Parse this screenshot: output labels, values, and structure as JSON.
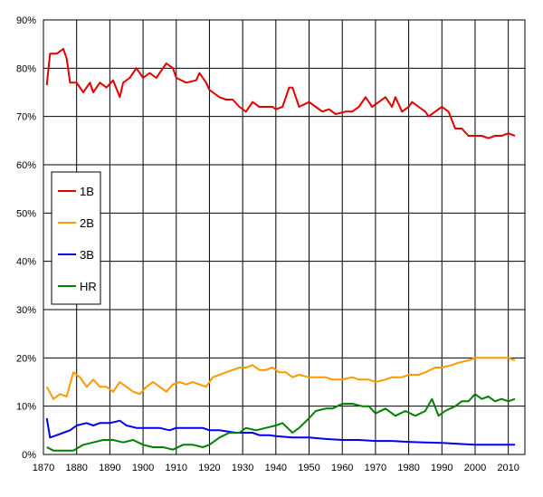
{
  "chart_data": {
    "type": "line",
    "title": "",
    "xlabel": "",
    "ylabel": "",
    "xlim": [
      1870,
      2015
    ],
    "ylim": [
      0,
      90
    ],
    "x_ticks": [
      "1870",
      "1880",
      "1890",
      "1900",
      "1910",
      "1920",
      "1930",
      "1940",
      "1950",
      "1960",
      "1970",
      "1980",
      "1990",
      "2000",
      "2010"
    ],
    "y_ticks": [
      "0%",
      "10%",
      "20%",
      "30%",
      "40%",
      "50%",
      "60%",
      "70%",
      "80%",
      "90%"
    ],
    "grid": true,
    "legend_position": "left-middle",
    "colors": {
      "1B": "#e00000",
      "2B": "#ff9900",
      "3B": "#0000ee",
      "HR": "#008000"
    },
    "series": [
      {
        "name": "1B",
        "x": [
          1871,
          1872,
          1874,
          1876,
          1877,
          1878,
          1880,
          1882,
          1884,
          1885,
          1887,
          1889,
          1891,
          1893,
          1894,
          1896,
          1898,
          1900,
          1902,
          1904,
          1906,
          1907,
          1909,
          1910,
          1913,
          1916,
          1917,
          1919,
          1920,
          1923,
          1925,
          1927,
          1929,
          1931,
          1933,
          1935,
          1937,
          1939,
          1940,
          1942,
          1944,
          1945,
          1947,
          1950,
          1952,
          1954,
          1956,
          1958,
          1961,
          1963,
          1965,
          1967,
          1969,
          1971,
          1973,
          1975,
          1976,
          1978,
          1980,
          1981,
          1983,
          1985,
          1986,
          1988,
          1990,
          1992,
          1994,
          1996,
          1998,
          2000,
          2002,
          2004,
          2006,
          2008,
          2010,
          2012
        ],
        "values": [
          76.5,
          83,
          83,
          84,
          82,
          77,
          77,
          75,
          77,
          75,
          77,
          76,
          77.5,
          74,
          77,
          78,
          80,
          78,
          79,
          78,
          80,
          81,
          80,
          78,
          77,
          77.5,
          79,
          77,
          75.5,
          74,
          73.5,
          73.5,
          72,
          71,
          73,
          72,
          72,
          72,
          71.5,
          72,
          76,
          76,
          72,
          73,
          72,
          71,
          71.5,
          70.5,
          71,
          71,
          72,
          74,
          72,
          73,
          74,
          72,
          74,
          71,
          72,
          73,
          72,
          71,
          70,
          71,
          72,
          71,
          67.5,
          67.5,
          66,
          66,
          66,
          65.5,
          66,
          66,
          66.5,
          66
        ]
      },
      {
        "name": "2B",
        "x": [
          1871,
          1873,
          1875,
          1877,
          1879,
          1881,
          1883,
          1885,
          1887,
          1889,
          1891,
          1893,
          1895,
          1897,
          1899,
          1901,
          1903,
          1905,
          1907,
          1909,
          1911,
          1913,
          1915,
          1917,
          1919,
          1921,
          1923,
          1925,
          1927,
          1929,
          1931,
          1933,
          1935,
          1937,
          1939,
          1941,
          1943,
          1945,
          1947,
          1950,
          1953,
          1955,
          1957,
          1960,
          1963,
          1965,
          1968,
          1970,
          1973,
          1975,
          1978,
          1980,
          1983,
          1985,
          1988,
          1990,
          1993,
          1995,
          1998,
          2000,
          2003,
          2005,
          2007,
          2010,
          2012
        ],
        "values": [
          14,
          11.5,
          12.5,
          12,
          17,
          16,
          14,
          15.5,
          14,
          14,
          13,
          15,
          14,
          13,
          12.5,
          14,
          15,
          14,
          13,
          14.5,
          15,
          14.5,
          15,
          14.5,
          14,
          16,
          16.5,
          17,
          17.5,
          18,
          18,
          18.5,
          17.5,
          17.5,
          18,
          17,
          17,
          16,
          16.5,
          16,
          16,
          16,
          15.5,
          15.5,
          16,
          15.5,
          15.5,
          15,
          15.5,
          16,
          16,
          16.5,
          16.5,
          17,
          18,
          18,
          18.5,
          19,
          19.5,
          20,
          20,
          20,
          20,
          20,
          19.5
        ]
      },
      {
        "name": "3B",
        "x": [
          1871,
          1872,
          1874,
          1876,
          1878,
          1880,
          1883,
          1885,
          1887,
          1890,
          1893,
          1895,
          1898,
          1900,
          1903,
          1905,
          1908,
          1910,
          1913,
          1915,
          1918,
          1920,
          1923,
          1925,
          1928,
          1930,
          1933,
          1935,
          1938,
          1940,
          1945,
          1950,
          1955,
          1960,
          1965,
          1970,
          1975,
          1980,
          1985,
          1990,
          1995,
          2000,
          2005,
          2010,
          2012
        ],
        "values": [
          7.5,
          3.5,
          4,
          4.5,
          5,
          6,
          6.5,
          6,
          6.5,
          6.5,
          7,
          6,
          5.5,
          5.5,
          5.5,
          5.5,
          5,
          5.5,
          5.5,
          5.5,
          5.5,
          5,
          5,
          4.8,
          4.5,
          4.5,
          4.5,
          4,
          4,
          3.8,
          3.5,
          3.5,
          3.2,
          3,
          3,
          2.8,
          2.8,
          2.6,
          2.5,
          2.4,
          2.2,
          2,
          2,
          2,
          2
        ]
      },
      {
        "name": "HR",
        "x": [
          1871,
          1873,
          1876,
          1879,
          1882,
          1885,
          1888,
          1891,
          1894,
          1897,
          1900,
          1903,
          1906,
          1909,
          1912,
          1915,
          1918,
          1920,
          1923,
          1926,
          1929,
          1931,
          1934,
          1937,
          1940,
          1942,
          1945,
          1947,
          1950,
          1952,
          1955,
          1957,
          1960,
          1963,
          1966,
          1968,
          1970,
          1973,
          1976,
          1979,
          1982,
          1985,
          1987,
          1989,
          1991,
          1994,
          1996,
          1998,
          2000,
          2002,
          2004,
          2006,
          2008,
          2010,
          2012
        ],
        "values": [
          1.5,
          0.8,
          0.8,
          0.8,
          2,
          2.5,
          3,
          3,
          2.5,
          3,
          2,
          1.5,
          1.5,
          1,
          2,
          2,
          1.5,
          2,
          3.5,
          4.5,
          4.5,
          5.5,
          5,
          5.5,
          6,
          6.5,
          4.5,
          5.5,
          7.5,
          9,
          9.5,
          9.5,
          10.5,
          10.5,
          10,
          10,
          8.5,
          9.5,
          8,
          9,
          8,
          9,
          11.5,
          8,
          9,
          10,
          11,
          11,
          12.5,
          11.5,
          12,
          11,
          11.5,
          11,
          11.5
        ]
      }
    ]
  }
}
